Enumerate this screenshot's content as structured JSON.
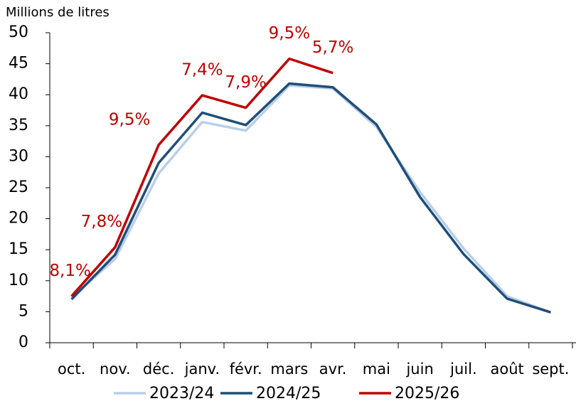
{
  "chart_data": {
    "type": "line",
    "y_axis_label": "Millions de litres",
    "categories": [
      "oct.",
      "nov.",
      "déc.",
      "janv.",
      "févr.",
      "mars",
      "avr.",
      "mai",
      "juin",
      "juil.",
      "août",
      "sept."
    ],
    "series": [
      {
        "name": "2023/24",
        "color": "#b8cfe8",
        "values": [
          7.3,
          13.5,
          27.3,
          35.6,
          34.2,
          41.5,
          41.0,
          34.8,
          24.3,
          15.2,
          7.5,
          4.9
        ]
      },
      {
        "name": "2024/25",
        "color": "#1f4e79",
        "values": [
          7.0,
          14.2,
          29.0,
          37.1,
          35.1,
          41.8,
          41.2,
          35.2,
          23.5,
          14.3,
          7.1,
          4.9
        ]
      },
      {
        "name": "2025/26",
        "color": "#c00000",
        "values": [
          7.5,
          15.4,
          31.9,
          39.9,
          37.9,
          45.8,
          43.5,
          null,
          null,
          null,
          null,
          null
        ],
        "annotations": [
          "8,1%",
          "7,8%",
          "9,5%",
          "7,4%",
          "7,9%",
          "9,5%",
          "5,7%"
        ]
      }
    ],
    "ylim": [
      0,
      50
    ],
    "yticks": [
      0,
      5,
      10,
      15,
      20,
      25,
      30,
      35,
      40,
      45,
      50
    ],
    "grid": false
  }
}
